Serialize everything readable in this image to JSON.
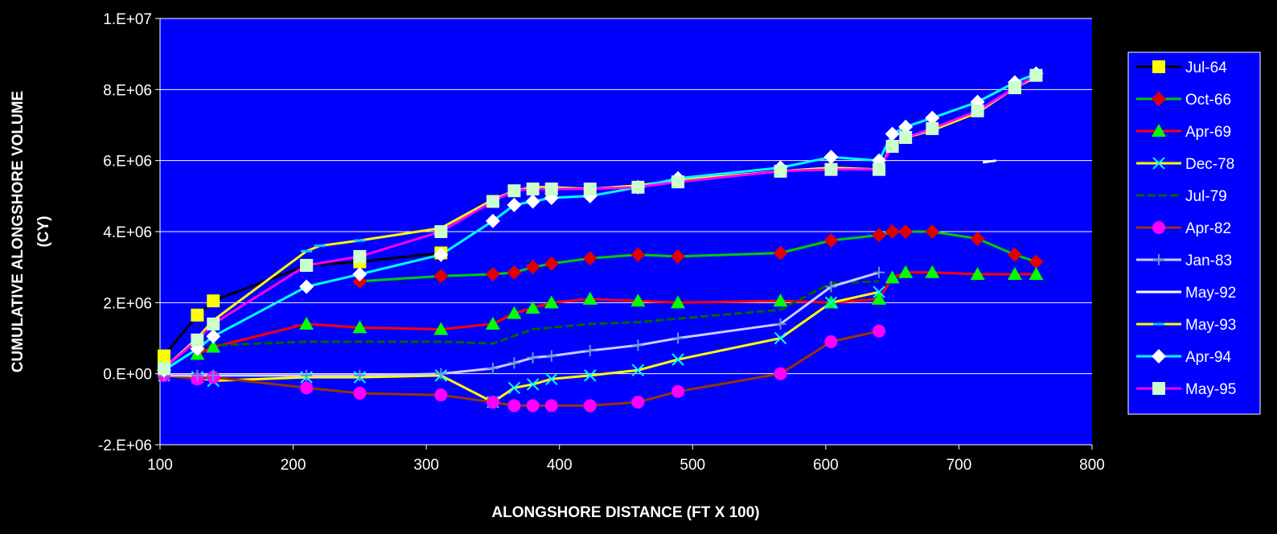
{
  "chart_data": {
    "type": "line",
    "title": "",
    "xlabel": "ALONGSHORE DISTANCE (FT X 100)",
    "ylabel": [
      "CUMULATIVE ALONGSHORE VOLUME",
      "(CY)"
    ],
    "xlim": [
      100,
      800
    ],
    "ylim": [
      -2000000,
      10000000
    ],
    "x_ticks": [
      100,
      200,
      300,
      400,
      500,
      600,
      700,
      800
    ],
    "x_tick_labels": [
      "100",
      "200",
      "300",
      "400",
      "500",
      "600",
      "700",
      "800"
    ],
    "y_ticks": [
      -2000000,
      0,
      2000000,
      4000000,
      6000000,
      8000000,
      10000000
    ],
    "y_tick_labels": [
      "-2.E+06",
      "0.E+00",
      "2.E+06",
      "4.E+06",
      "6.E+06",
      "8.E+06",
      "1.E+07"
    ],
    "grid": "horizontal",
    "legend_position": "right",
    "colors": {
      "page_background": "#000000",
      "plot_background": "#0000FF",
      "grid": "#FFFFFF",
      "text": "#FFFFFF"
    },
    "series": [
      {
        "name": "Jul-64",
        "color": "#000000",
        "marker": "square",
        "marker_color": "#FFFF00",
        "x": [
          103,
          128,
          140,
          210,
          250,
          311
        ],
        "y": [
          500000,
          1650000,
          2050000,
          3050000,
          3150000,
          3400000
        ]
      },
      {
        "name": "Oct-66",
        "color": "#00CC00",
        "marker": "diamond",
        "marker_color": "#E00000",
        "x": [
          250,
          311,
          350,
          366,
          380,
          394,
          423,
          459,
          489,
          566,
          604,
          640,
          650,
          660,
          680,
          714,
          742,
          758
        ],
        "y": [
          2600000,
          2750000,
          2800000,
          2850000,
          3000000,
          3100000,
          3250000,
          3350000,
          3300000,
          3400000,
          3750000,
          3900000,
          4000000,
          4000000,
          4000000,
          3800000,
          3350000,
          3150000
        ]
      },
      {
        "name": "Apr-69",
        "color": "#FF0000",
        "marker": "triangle",
        "marker_color": "#00FF00",
        "x": [
          128,
          140,
          210,
          250,
          311,
          350,
          366,
          380,
          394,
          423,
          459,
          489,
          566,
          604,
          640,
          650,
          660,
          680,
          714,
          742,
          758
        ],
        "y": [
          550000,
          750000,
          1400000,
          1300000,
          1250000,
          1400000,
          1700000,
          1850000,
          2000000,
          2100000,
          2050000,
          2000000,
          2050000,
          2000000,
          2100000,
          2700000,
          2850000,
          2850000,
          2800000,
          2800000,
          2800000
        ]
      },
      {
        "name": "Dec-78",
        "color": "#FFFF00",
        "marker": "x",
        "marker_color": "#00FFFF",
        "x": [
          103,
          128,
          140,
          210,
          250,
          311,
          350,
          366,
          380,
          394,
          423,
          459,
          489,
          566,
          604,
          640
        ],
        "y": [
          -50000,
          -100000,
          -200000,
          -100000,
          -100000,
          -50000,
          -800000,
          -400000,
          -300000,
          -150000,
          -50000,
          100000,
          400000,
          1000000,
          2000000,
          2300000
        ]
      },
      {
        "name": "Jul-79",
        "color": "#006400",
        "dash": true,
        "marker": "none",
        "x": [
          128,
          140,
          210,
          250,
          311,
          350,
          380,
          394,
          423,
          459,
          489,
          566,
          604,
          640
        ],
        "y": [
          700000,
          800000,
          900000,
          900000,
          900000,
          850000,
          1250000,
          1300000,
          1400000,
          1450000,
          1550000,
          1800000,
          2550000,
          2600000
        ]
      },
      {
        "name": "Apr-82",
        "color": "#993300",
        "marker": "circle",
        "marker_color": "#FF00FF",
        "x": [
          103,
          128,
          140,
          210,
          250,
          311,
          350,
          366,
          380,
          394,
          423,
          459,
          489,
          566,
          604,
          640
        ],
        "y": [
          -50000,
          -150000,
          -100000,
          -400000,
          -550000,
          -600000,
          -800000,
          -900000,
          -900000,
          -900000,
          -900000,
          -800000,
          -500000,
          0,
          900000,
          1200000
        ]
      },
      {
        "name": "Jan-83",
        "color": "#CCCCFF",
        "marker": "plus",
        "marker_color": "#6699CC",
        "x": [
          103,
          128,
          140,
          210,
          250,
          311,
          350,
          366,
          380,
          394,
          423,
          459,
          489,
          566,
          604,
          640
        ],
        "y": [
          -50000,
          -50000,
          -50000,
          -50000,
          -50000,
          0,
          150000,
          300000,
          450000,
          500000,
          650000,
          800000,
          1000000,
          1400000,
          2450000,
          2850000
        ]
      },
      {
        "name": "May-92",
        "color": "#FFFFFF",
        "marker": "none",
        "x": [
          718,
          728
        ],
        "y": [
          5950000,
          6000000
        ]
      },
      {
        "name": "May-93",
        "color": "#FFFF00",
        "marker": "dash",
        "marker_color": "#00CCFF",
        "x": [
          103,
          128,
          140,
          210,
          220,
          250,
          311,
          350,
          366,
          380,
          394,
          423,
          459,
          489,
          566,
          604,
          640,
          650,
          660,
          680,
          714,
          742,
          758
        ],
        "y": [
          150000,
          1000000,
          1500000,
          3450000,
          3600000,
          3750000,
          4100000,
          4900000,
          5150000,
          5250000,
          5250000,
          5200000,
          5300000,
          5450000,
          5700000,
          5800000,
          5750000,
          6450000,
          6650000,
          6850000,
          7350000,
          8050000,
          8350000
        ]
      },
      {
        "name": "Apr-94",
        "color": "#00FFFF",
        "marker": "diamond",
        "marker_color": "#FFFFFF",
        "x": [
          103,
          128,
          140,
          210,
          250,
          311,
          350,
          366,
          380,
          394,
          423,
          459,
          489,
          566,
          604,
          640,
          650,
          660,
          680,
          714,
          742,
          758
        ],
        "y": [
          100000,
          700000,
          1050000,
          2450000,
          2800000,
          3350000,
          4300000,
          4750000,
          4850000,
          4950000,
          5000000,
          5250000,
          5500000,
          5800000,
          6100000,
          6000000,
          6750000,
          6950000,
          7200000,
          7650000,
          8200000,
          8450000
        ]
      },
      {
        "name": "May-95",
        "color": "#FF00FF",
        "marker": "square",
        "marker_color": "#CCFFCC",
        "x": [
          103,
          128,
          140,
          210,
          250,
          311,
          350,
          366,
          380,
          394,
          423,
          459,
          489,
          566,
          604,
          640,
          650,
          660,
          680,
          714,
          742,
          758
        ],
        "y": [
          150000,
          950000,
          1400000,
          3050000,
          3300000,
          4000000,
          4850000,
          5150000,
          5200000,
          5200000,
          5200000,
          5250000,
          5400000,
          5700000,
          5750000,
          5750000,
          6400000,
          6650000,
          6900000,
          7400000,
          8050000,
          8400000
        ]
      }
    ]
  }
}
